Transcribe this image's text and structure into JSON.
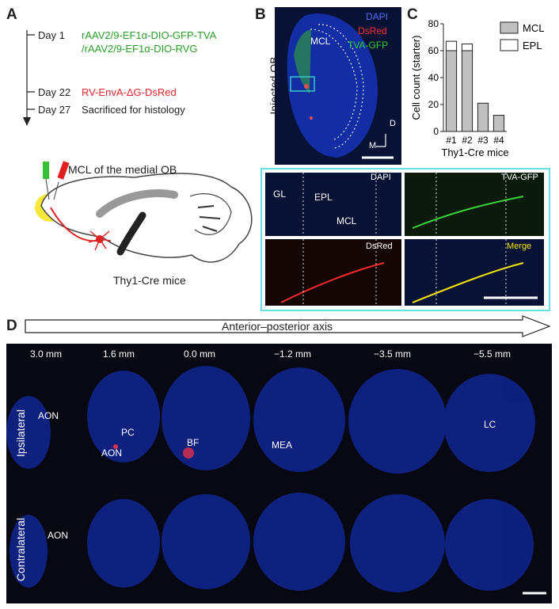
{
  "panels": {
    "A": "A",
    "B": "B",
    "C": "C",
    "D": "D"
  },
  "timeline": {
    "day1": "Day 1",
    "virus1": "rAAV2/9-EF1α-DIO-GFP-TVA",
    "virus2": "/rAAV2/9-EF1α-DIO-RVG",
    "day22": "Day 22",
    "rv": "RV-EnvA-ΔG-DsRed",
    "day27": "Day 27",
    "sacrifice": "Sacrificed for histology"
  },
  "schematic": {
    "injection_site": "MCL of the medial OB",
    "mice": "Thy1-Cre mice"
  },
  "panelB": {
    "ylabel": "Injected OB",
    "dapi": "DAPI",
    "dsred": "DsRed",
    "gfp": "TVA-GFP",
    "mcl": "MCL",
    "d": "D",
    "m": "M"
  },
  "zoom": {
    "gl": "GL",
    "epl": "EPL",
    "mcl": "MCL",
    "dapi": "DAPI",
    "gfp": "TVA-GFP",
    "dsred": "DsRed",
    "merge": "Merge"
  },
  "panelD": {
    "axis": "Anterior–posterior axis",
    "positions": [
      "3.0 mm",
      "1.6 mm",
      "0.0 mm",
      "−1.2 mm",
      "−3.5 mm",
      "−5.5 mm"
    ],
    "rows": [
      "Ipsilateral",
      "Contralateral"
    ],
    "regions": {
      "aon": "AON",
      "pc": "PC",
      "aon2": "AON",
      "bf": "BF",
      "mea": "MEA",
      "lc": "LC",
      "aon_contra": "AON"
    }
  },
  "chart_data": {
    "type": "bar",
    "categories": [
      "#1",
      "#2",
      "#3",
      "#4"
    ],
    "series": [
      {
        "name": "MCL",
        "values": [
          60,
          60,
          21,
          12
        ],
        "color": "#c0c0c0"
      },
      {
        "name": "EPL",
        "values": [
          7,
          5,
          0,
          0
        ],
        "color": "#ffffff"
      }
    ],
    "xlabel": "Thy1-Cre mice",
    "ylabel": "Cell count (starter)",
    "ylim": [
      0,
      80
    ],
    "yticks": [
      0,
      20,
      40,
      60,
      80
    ],
    "legend": "top-right"
  }
}
